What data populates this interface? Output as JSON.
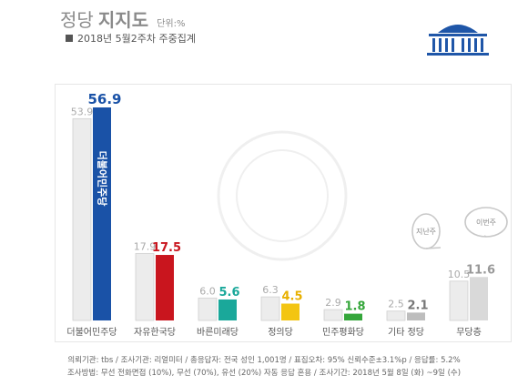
{
  "header": {
    "title_light": "정당",
    "title_bold": "지지도",
    "unit": "단위:%",
    "subtitle": "2018년 5월2주차 주중집계"
  },
  "footer": {
    "line1": "의뢰기관: tbs / 조사기관: 리얼미터 / 총응답자: 전국 성인 1,001명 / 표집오차: 95% 신뢰수준±3.1%p / 응답률: 5.2%",
    "line2": "조사방법: 무선 전화면접 (10%), 무선 (70%), 유선 (20%) 자동 응답 혼용 / 조사기간: 2018년 5월 8일 (화) ~9일 (수)"
  },
  "colors": {
    "previous": "#ececec",
    "democratic": "#1a52a7",
    "liberty": "#c9151e",
    "bareun": "#1aa89a",
    "justice": "#f3c512",
    "peace": "#34a63a",
    "others": "#bdbdbd",
    "none": "#d9d9d9"
  },
  "chart_data": {
    "type": "bar",
    "categories": [
      "더불어민주당",
      "자유한국당",
      "바른미래당",
      "정의당",
      "민주평화당",
      "기타 정당",
      "무당층"
    ],
    "series": [
      {
        "values": [
          53.9,
          17.9,
          6.0,
          6.3,
          2.9,
          2.5,
          10.5
        ]
      },
      {
        "values": [
          56.9,
          17.5,
          5.6,
          4.5,
          1.8,
          2.1,
          11.6
        ]
      }
    ],
    "current_colors": [
      "#1a52a7",
      "#c9151e",
      "#1aa89a",
      "#f3c512",
      "#34a63a",
      "#bdbdbd",
      "#d9d9d9"
    ],
    "value_label_colors": [
      "#1a52a7",
      "#c9151e",
      "#1aa89a",
      "#e8b000",
      "#34a63a",
      "#777777",
      "#999999"
    ],
    "bar_text": "더불어민주당",
    "ylim": [
      0,
      60
    ],
    "callouts": [
      "지난주",
      "이번주"
    ]
  }
}
